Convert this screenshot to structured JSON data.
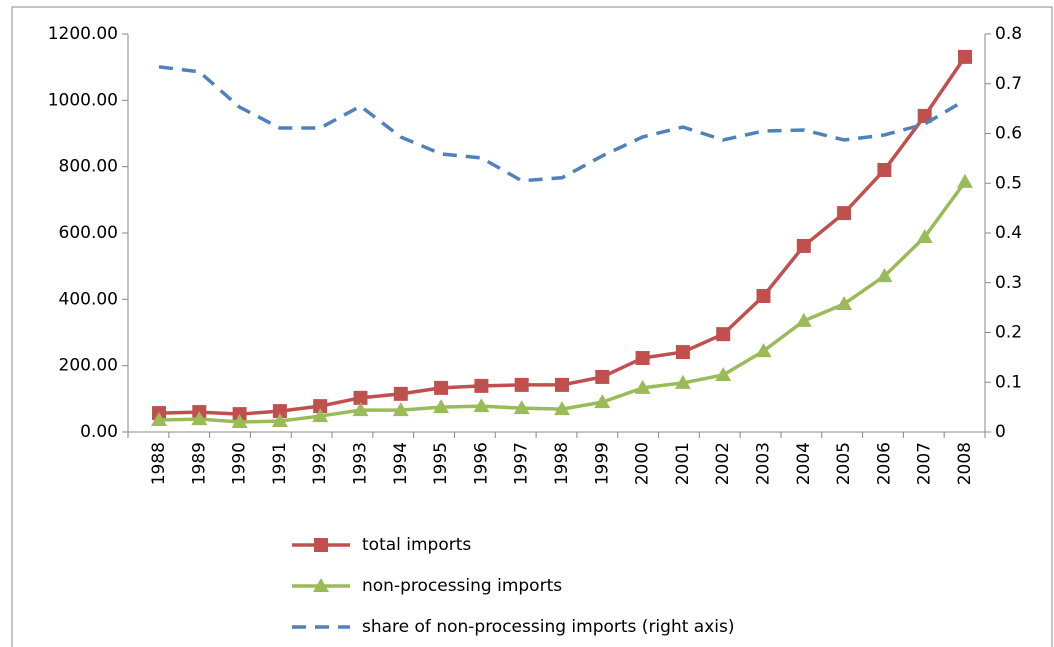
{
  "chart_data": {
    "type": "line",
    "categories": [
      "1988",
      "1989",
      "1990",
      "1991",
      "1992",
      "1993",
      "1994",
      "1995",
      "1996",
      "1997",
      "1998",
      "1999",
      "2000",
      "2001",
      "2002",
      "2003",
      "2004",
      "2005",
      "2006",
      "2007",
      "2008"
    ],
    "series": [
      {
        "name": "total imports",
        "color": "#c0504d",
        "marker": "square",
        "dash": false,
        "values": [
          57,
          60,
          54,
          63,
          78,
          103,
          115,
          133,
          139,
          142,
          142,
          166,
          223,
          241,
          295,
          410,
          561,
          660,
          790,
          953,
          1131
        ]
      },
      {
        "name": "non-processing imports",
        "color": "#9bbb59",
        "marker": "triangle",
        "dash": false,
        "values": [
          36,
          39,
          30,
          33,
          48,
          66,
          66,
          75,
          78,
          72,
          69,
          90,
          133,
          148,
          172,
          244,
          335,
          386,
          470,
          588,
          754
        ]
      },
      {
        "name": "share of non-processing imports (right axis)",
        "color": "#4f81bd",
        "marker": null,
        "dash": true,
        "axis": "y2",
        "values": [
          0.734,
          0.724,
          0.653,
          0.611,
          0.611,
          0.655,
          0.593,
          0.559,
          0.551,
          0.505,
          0.511,
          0.555,
          0.593,
          0.613,
          0.587,
          0.605,
          0.607,
          0.587,
          0.597,
          0.619,
          0.667
        ]
      }
    ],
    "ylim": [
      0,
      1200
    ],
    "yticks": [
      {
        "value": 0,
        "label": "0.00"
      },
      {
        "value": 200,
        "label": "200.00"
      },
      {
        "value": 400,
        "label": "400.00"
      },
      {
        "value": 600,
        "label": "600.00"
      },
      {
        "value": 800,
        "label": "800.00"
      },
      {
        "value": 1000,
        "label": "1000.00"
      },
      {
        "value": 1200,
        "label": "1200.00"
      }
    ],
    "y2lim": [
      0,
      0.8
    ],
    "y2ticks": [
      0,
      0.1,
      0.2,
      0.3,
      0.4,
      0.5,
      0.6,
      0.7,
      0.8
    ],
    "grid": false,
    "legend": "bottom"
  }
}
